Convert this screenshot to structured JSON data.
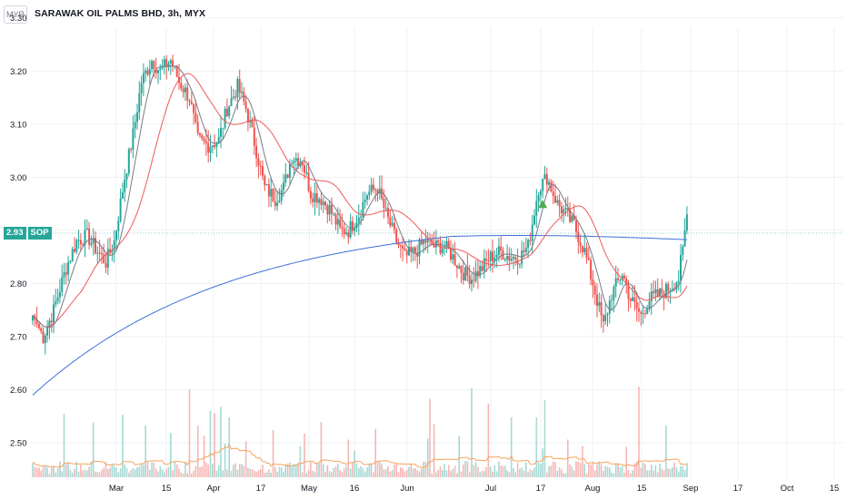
{
  "header": {
    "currency": "MYR",
    "title": "SARAWAK OIL PALMS BHD, 3h, MYX"
  },
  "last_price": {
    "value": "2.93",
    "symbol": "SOP"
  },
  "colors": {
    "up": "#26a69a",
    "down": "#ef5350",
    "ma_fast": "#787b86",
    "ma_mid": "#f0595a",
    "ma_slow": "#3d6fd9",
    "volume_ma": "#f7a35c",
    "signal": "#4caf50",
    "grid": "#eef0f3"
  },
  "chart_data": {
    "type": "candlestick",
    "ylim": [
      2.42,
      3.32
    ],
    "y_ticks": [
      "3.30",
      "3.20",
      "3.10",
      "3.00",
      "2.90",
      "2.80",
      "2.70",
      "2.60",
      "2.50"
    ],
    "x_ticks": [
      "Mar",
      "15",
      "Apr",
      "17",
      "May",
      "16",
      "Jun",
      "Jul",
      "17",
      "Aug",
      "15",
      "Sep",
      "17",
      "Oct",
      "15"
    ],
    "close_anchors": [
      [
        0,
        2.74
      ],
      [
        5,
        2.7
      ],
      [
        10,
        2.75
      ],
      [
        16,
        2.83
      ],
      [
        21,
        2.88
      ],
      [
        26,
        2.89
      ],
      [
        31,
        2.86
      ],
      [
        35,
        2.84
      ],
      [
        39,
        2.88
      ],
      [
        44,
        3.0
      ],
      [
        48,
        3.08
      ],
      [
        52,
        3.18
      ],
      [
        57,
        3.22
      ],
      [
        61,
        3.2
      ],
      [
        66,
        3.22
      ],
      [
        70,
        3.18
      ],
      [
        75,
        3.15
      ],
      [
        79,
        3.07
      ],
      [
        84,
        3.06
      ],
      [
        89,
        3.07
      ],
      [
        93,
        3.13
      ],
      [
        98,
        3.17
      ],
      [
        102,
        3.13
      ],
      [
        107,
        3.05
      ],
      [
        111,
        2.98
      ],
      [
        116,
        2.96
      ],
      [
        120,
        2.98
      ],
      [
        124,
        3.04
      ],
      [
        129,
        3.03
      ],
      [
        133,
        2.97
      ],
      [
        138,
        2.96
      ],
      [
        142,
        2.94
      ],
      [
        147,
        2.9
      ],
      [
        151,
        2.9
      ],
      [
        156,
        2.93
      ],
      [
        160,
        2.97
      ],
      [
        165,
        2.98
      ],
      [
        169,
        2.93
      ],
      [
        174,
        2.88
      ],
      [
        178,
        2.85
      ],
      [
        183,
        2.86
      ],
      [
        188,
        2.88
      ],
      [
        192,
        2.87
      ],
      [
        197,
        2.87
      ],
      [
        201,
        2.85
      ],
      [
        206,
        2.82
      ],
      [
        210,
        2.81
      ],
      [
        215,
        2.83
      ],
      [
        219,
        2.85
      ],
      [
        224,
        2.86
      ],
      [
        228,
        2.85
      ],
      [
        233,
        2.85
      ],
      [
        237,
        2.87
      ],
      [
        242,
        2.98
      ],
      [
        246,
        3.0
      ],
      [
        251,
        2.95
      ],
      [
        255,
        2.93
      ],
      [
        259,
        2.91
      ],
      [
        264,
        2.86
      ],
      [
        268,
        2.8
      ],
      [
        273,
        2.72
      ],
      [
        277,
        2.78
      ],
      [
        282,
        2.82
      ],
      [
        286,
        2.77
      ],
      [
        291,
        2.74
      ],
      [
        295,
        2.77
      ],
      [
        300,
        2.78
      ],
      [
        304,
        2.79
      ],
      [
        309,
        2.81
      ],
      [
        313,
        2.93
      ]
    ],
    "moving_averages": [
      {
        "name": "MA fast",
        "color": "#787b86"
      },
      {
        "name": "MA mid",
        "color": "#f0595a"
      },
      {
        "name": "MA slow",
        "color": "#3d6fd9"
      }
    ],
    "signal_marker": {
      "index": 244,
      "type": "buy-triangle"
    },
    "grid": true,
    "volume_ma_color": "#f7a35c"
  }
}
